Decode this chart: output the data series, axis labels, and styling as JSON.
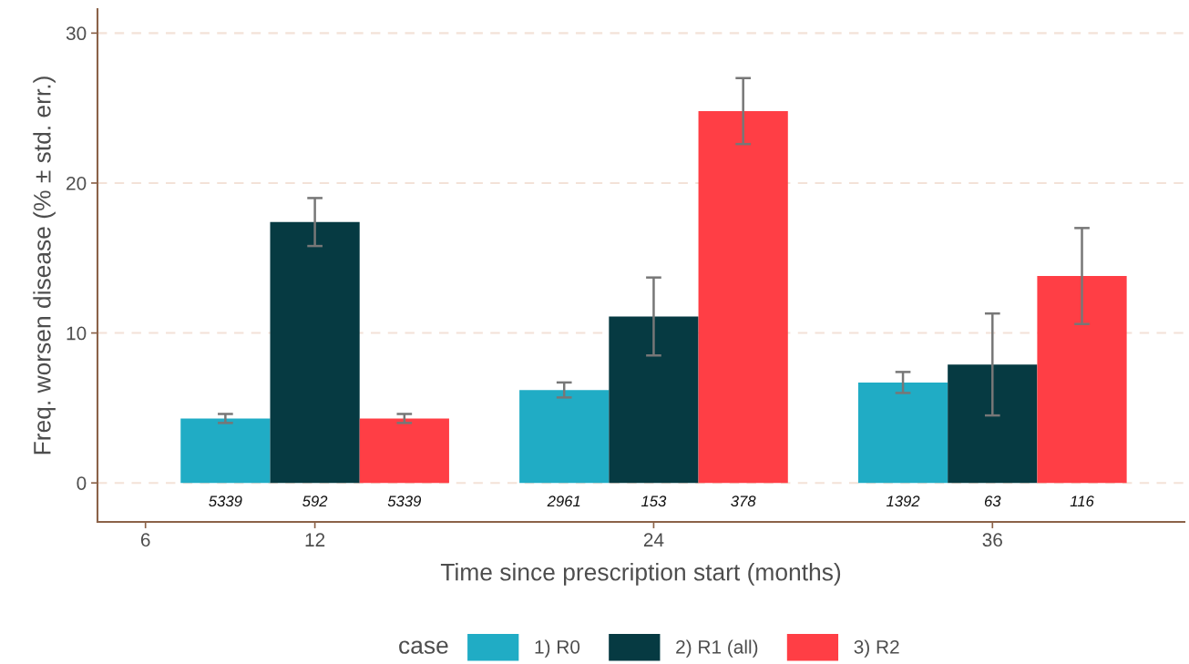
{
  "chart_data": {
    "type": "bar",
    "xlabel": "Time since prescription start (months)",
    "ylabel": "Freq. worsen disease (% ± std. err.)",
    "legend_title": "case",
    "x": [
      12,
      24,
      36
    ],
    "series": [
      {
        "name": "1) R0",
        "color": "#20acc5",
        "values": [
          4.3,
          6.2,
          6.7
        ],
        "errors": [
          0.3,
          0.5,
          0.7
        ]
      },
      {
        "name": "2) R1 (all)",
        "color": "#063a42",
        "values": [
          17.4,
          11.1,
          7.9
        ],
        "errors": [
          1.6,
          2.6,
          3.4
        ]
      },
      {
        "name": "3) R2",
        "color": "#ff3e45",
        "values": [
          4.3,
          24.8,
          13.8
        ],
        "errors": [
          0.3,
          2.2,
          3.2
        ]
      }
    ],
    "annotations": [
      "5339",
      "592",
      "5339",
      "2961",
      "153",
      "378",
      "1392",
      "63",
      "116"
    ],
    "xlim": [
      4.3,
      42.8
    ],
    "xticks": [
      6,
      12,
      24,
      36
    ],
    "ylim": [
      -2.6,
      31.6
    ],
    "yticks": [
      0,
      10,
      20,
      30
    ],
    "grid": "y",
    "legend": "bottom"
  }
}
